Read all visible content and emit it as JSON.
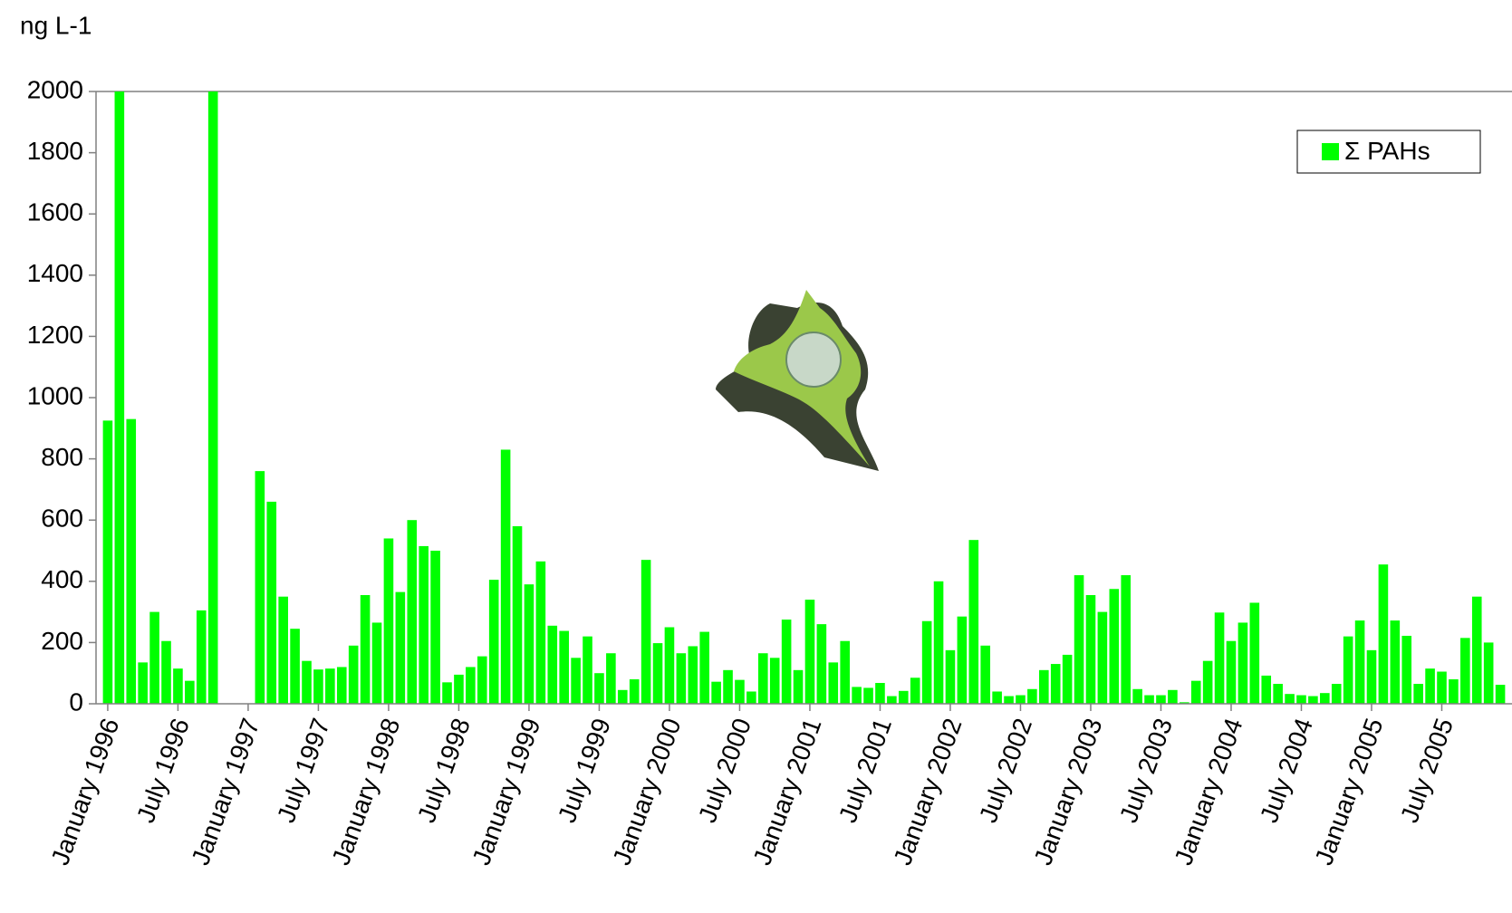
{
  "chart_data": {
    "type": "bar",
    "y_axis_label": "ng L-1",
    "categories": [
      "January 1996",
      null,
      null,
      null,
      null,
      null,
      "July 1996",
      null,
      null,
      null,
      null,
      null,
      "January 1997",
      null,
      null,
      null,
      null,
      null,
      "July 1997",
      null,
      null,
      null,
      null,
      null,
      "January 1998",
      null,
      null,
      null,
      null,
      null,
      "July 1998",
      null,
      null,
      null,
      null,
      null,
      "January 1999",
      null,
      null,
      null,
      null,
      null,
      "July 1999",
      null,
      null,
      null,
      null,
      null,
      "January 2000",
      null,
      null,
      null,
      null,
      null,
      "July 2000",
      null,
      null,
      null,
      null,
      null,
      "January 2001",
      null,
      null,
      null,
      null,
      null,
      "July 2001",
      null,
      null,
      null,
      null,
      null,
      "January 2002",
      null,
      null,
      null,
      null,
      null,
      "July 2002",
      null,
      null,
      null,
      null,
      null,
      "January 2003",
      null,
      null,
      null,
      null,
      null,
      "July 2003",
      null,
      null,
      null,
      null,
      null,
      "January 2004",
      null,
      null,
      null,
      null,
      null,
      "July 2004",
      null,
      null,
      null,
      null,
      null,
      "January 2005",
      null,
      null,
      null,
      null,
      null,
      "July 2005",
      null,
      null,
      null,
      null,
      null
    ],
    "series": [
      {
        "name": "Σ PAHs",
        "color": "#00ff00",
        "values": [
          925,
          2000,
          930,
          135,
          300,
          205,
          115,
          75,
          305,
          2000,
          null,
          null,
          null,
          760,
          660,
          350,
          245,
          140,
          112,
          115,
          120,
          190,
          355,
          265,
          540,
          365,
          600,
          515,
          500,
          70,
          95,
          120,
          155,
          405,
          830,
          580,
          390,
          465,
          255,
          238,
          150,
          220,
          100,
          165,
          45,
          80,
          470,
          198,
          250,
          165,
          188,
          235,
          72,
          110,
          78,
          40,
          165,
          150,
          275,
          110,
          340,
          260,
          135,
          205,
          55,
          52,
          68,
          25,
          42,
          85,
          270,
          400,
          175,
          285,
          535,
          190,
          40,
          25,
          28,
          48,
          110,
          130,
          160,
          420,
          355,
          300,
          375,
          420,
          48,
          28,
          28,
          45,
          5,
          75,
          140,
          298,
          205,
          265,
          330,
          92,
          65,
          32,
          28,
          25,
          35,
          65,
          220,
          272,
          175,
          455,
          272,
          222,
          65,
          115,
          105,
          80,
          215,
          350,
          200,
          62
        ]
      }
    ],
    "ylim": [
      0,
      2000
    ],
    "yticks": [
      0,
      200,
      400,
      600,
      800,
      1000,
      1200,
      1400,
      1600,
      1800,
      2000
    ],
    "grid": false,
    "legend": "top-right"
  }
}
